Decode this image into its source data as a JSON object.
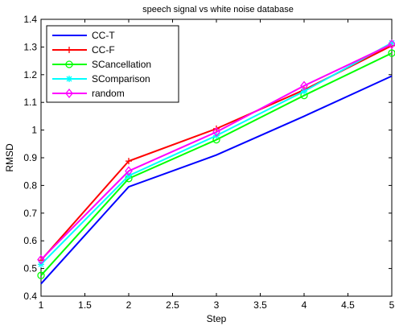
{
  "chart_data": {
    "type": "line",
    "title": "speech signal vs white noise database",
    "xlabel": "Step",
    "ylabel": "RMSD",
    "x": [
      1,
      2,
      3,
      4,
      5
    ],
    "xlim": [
      1,
      5
    ],
    "ylim": [
      0.4,
      1.4
    ],
    "xticks": [
      "1",
      "1.5",
      "2",
      "2.5",
      "3",
      "3.5",
      "4",
      "4.5",
      "5"
    ],
    "yticks": [
      "0.4",
      "0.5",
      "0.6",
      "0.7",
      "0.8",
      "0.9",
      "1",
      "1.1",
      "1.2",
      "1.3",
      "1.4"
    ],
    "grid": false,
    "legend_position": "top-left",
    "series": [
      {
        "name": "CC-T",
        "color": "#0000ff",
        "marker": "none",
        "values": [
          0.445,
          0.795,
          0.91,
          1.05,
          1.195
        ]
      },
      {
        "name": "CC-F",
        "color": "#ff0000",
        "marker": "plus",
        "values": [
          0.53,
          0.888,
          1.005,
          1.145,
          1.305
        ]
      },
      {
        "name": "SCancellation",
        "color": "#00ff00",
        "marker": "circle",
        "values": [
          0.475,
          0.825,
          0.965,
          1.125,
          1.278
        ]
      },
      {
        "name": "SComparison",
        "color": "#00ffff",
        "marker": "star",
        "values": [
          0.515,
          0.835,
          0.98,
          1.14,
          1.315
        ]
      },
      {
        "name": "random",
        "color": "#ff00ff",
        "marker": "diamond",
        "values": [
          0.532,
          0.852,
          0.993,
          1.16,
          1.31
        ]
      }
    ]
  }
}
